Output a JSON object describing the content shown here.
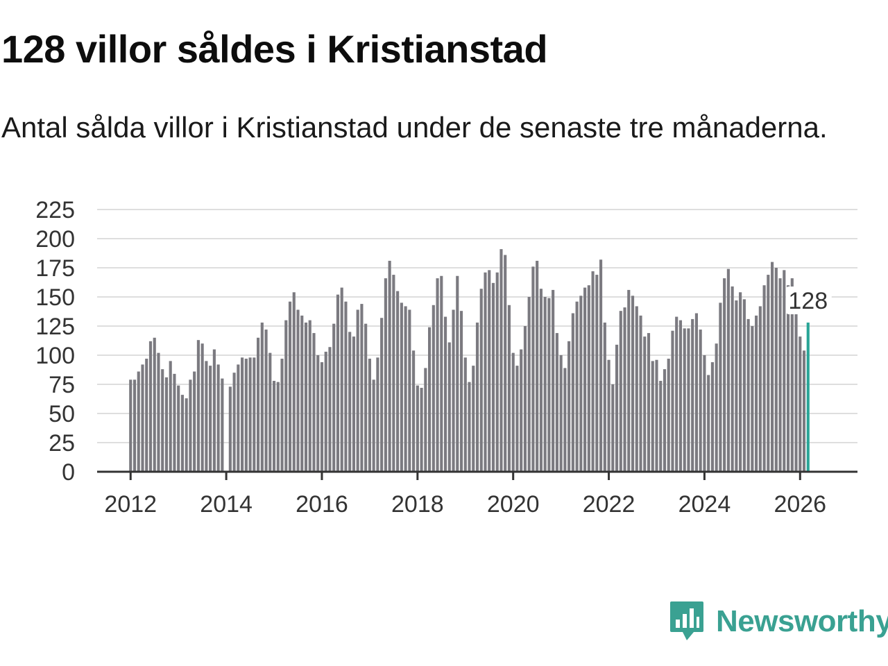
{
  "header": {
    "title": "128 villor såldes i Kristianstad",
    "subtitle": "Antal sålda villor i Kristianstad under de senaste tre månaderna."
  },
  "brand": {
    "name": "Newsworthy",
    "icon": "newsworthy-logo-icon",
    "color": "#3aa192"
  },
  "colors": {
    "bar": "#7b7a80",
    "highlight": "#2aa597",
    "grid": "#dedede",
    "axis": "#333333"
  },
  "chart_data": {
    "type": "bar",
    "title": "128 villor såldes i Kristianstad",
    "subtitle": "Antal sålda villor i Kristianstad under de senaste tre månaderna.",
    "xlabel": "",
    "ylabel": "",
    "ylim": [
      0,
      225
    ],
    "yticks": [
      "0",
      "25",
      "50",
      "75",
      "100",
      "125",
      "150",
      "175",
      "200",
      "225"
    ],
    "xticks": [
      "2012",
      "2014",
      "2016",
      "2018",
      "2020",
      "2022",
      "2024",
      "2026"
    ],
    "xrange": [
      2011.3,
      2027.2
    ],
    "grid": true,
    "series": [
      {
        "name": "Antal sålda villor",
        "start_year": 2012,
        "start_month": 1,
        "values": [
          79,
          79,
          86,
          92,
          97,
          112,
          115,
          102,
          88,
          81,
          95,
          84,
          74,
          66,
          63,
          79,
          86,
          113,
          110,
          95,
          91,
          105,
          92,
          80,
          null,
          73,
          85,
          92,
          98,
          97,
          98,
          98,
          115,
          128,
          122,
          102,
          78,
          77,
          97,
          130,
          146,
          154,
          139,
          134,
          128,
          130,
          119,
          100,
          94,
          103,
          107,
          127,
          152,
          158,
          146,
          120,
          116,
          139,
          144,
          127,
          97,
          79,
          98,
          132,
          166,
          181,
          169,
          155,
          145,
          142,
          139,
          104,
          74,
          72,
          89,
          124,
          143,
          166,
          168,
          133,
          111,
          139,
          168,
          138,
          98,
          77,
          91,
          128,
          157,
          171,
          173,
          162,
          171,
          191,
          186,
          143,
          102,
          91,
          105,
          125,
          150,
          176,
          181,
          157,
          150,
          149,
          156,
          119,
          100,
          89,
          112,
          136,
          146,
          151,
          158,
          160,
          172,
          169,
          182,
          128,
          96,
          75,
          109,
          138,
          141,
          156,
          151,
          142,
          134,
          116,
          119,
          95,
          96,
          78,
          88,
          97,
          121,
          133,
          130,
          123,
          123,
          131,
          136,
          122,
          100,
          83,
          94,
          110,
          145,
          166,
          174,
          159,
          147,
          154,
          148,
          131,
          125,
          134,
          142,
          160,
          169,
          180,
          175,
          166,
          173,
          160,
          166,
          137,
          116,
          104,
          128
        ],
        "last_value_label": "128"
      }
    ]
  }
}
